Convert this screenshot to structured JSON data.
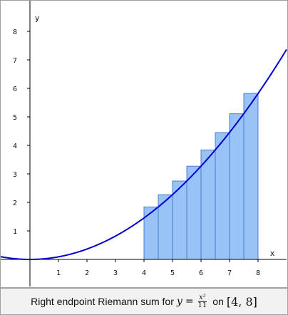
{
  "chart_data": {
    "type": "bar",
    "function": "y = x^2/11",
    "interval": [
      4,
      8
    ],
    "xlabel": "x",
    "ylabel": "y",
    "xlim": [
      -1,
      9
    ],
    "ylim": [
      -0.5,
      9
    ],
    "x_ticks": [
      1,
      2,
      3,
      4,
      5,
      6,
      7,
      8
    ],
    "y_ticks": [
      1,
      2,
      3,
      4,
      5,
      6,
      7,
      8
    ],
    "rectangles": [
      {
        "x0": 4.0,
        "x1": 4.5,
        "height": 1.84
      },
      {
        "x0": 4.5,
        "x1": 5.0,
        "height": 2.27
      },
      {
        "x0": 5.0,
        "x1": 5.5,
        "height": 2.75
      },
      {
        "x0": 5.5,
        "x1": 6.0,
        "height": 3.27
      },
      {
        "x0": 6.0,
        "x1": 6.5,
        "height": 3.84
      },
      {
        "x0": 6.5,
        "x1": 7.0,
        "height": 4.45
      },
      {
        "x0": 7.0,
        "x1": 7.5,
        "height": 5.11
      },
      {
        "x0": 7.5,
        "x1": 8.0,
        "height": 5.82
      }
    ],
    "curve_color": "#0000cc",
    "bar_fill": "#99c2f7",
    "bar_stroke": "#4a7fd0",
    "grid": false
  },
  "caption": {
    "prefix": "Right endpoint Riemann sum for",
    "y_var": "y",
    "equals": "=",
    "numerator": "x²",
    "denominator": "11",
    "on_word": "on",
    "interval": "[4, 8]"
  }
}
